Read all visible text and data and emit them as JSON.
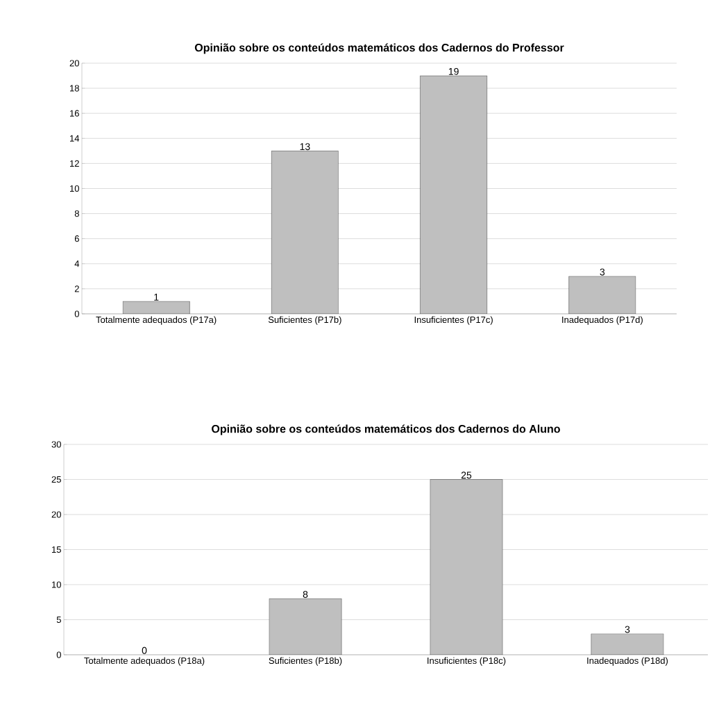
{
  "chart_data": [
    {
      "type": "bar",
      "title": "Opinião sobre os conteúdos matemáticos dos Cadernos do Professor",
      "categories": [
        "Totalmente adequados (P17a)",
        "Suficientes (P17b)",
        "Insuficientes (P17c)",
        "Inadequados (P17d)"
      ],
      "values": [
        1,
        13,
        19,
        3
      ],
      "color": "#bfbfbf",
      "ylim": [
        0,
        20
      ],
      "yticks": [
        0,
        2,
        4,
        6,
        8,
        10,
        12,
        14,
        16,
        18,
        20
      ],
      "grid": "y",
      "data_labels": true
    },
    {
      "type": "bar",
      "title": "Opinião sobre os conteúdos matemáticos dos Cadernos do Aluno",
      "categories": [
        "Totalmente adequados (P18a)",
        "Suficientes (P18b)",
        "Insuficientes (P18c)",
        "Inadequados (P18d)"
      ],
      "values": [
        0,
        8,
        25,
        3
      ],
      "color": "#bfbfbf",
      "ylim": [
        0,
        30
      ],
      "yticks": [
        0,
        5,
        10,
        15,
        20,
        25,
        30
      ],
      "grid": "y",
      "data_labels": true
    }
  ]
}
